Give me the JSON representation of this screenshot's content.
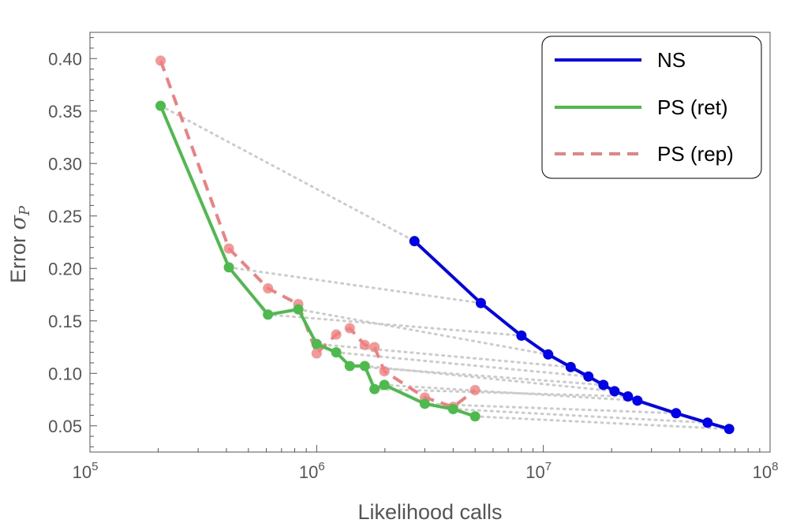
{
  "chart_data": {
    "type": "line",
    "title": "",
    "xlabel": "Likelihood calls",
    "ylabel": "Error σP",
    "ylabel_main": "Error",
    "ylabel_symbol": "σ",
    "ylabel_subscript": "P",
    "xscale": "log",
    "xlim": [
      100000,
      100000000
    ],
    "ylim": [
      0.025,
      0.425
    ],
    "x_ticks": [
      {
        "value": 100000,
        "base": "10",
        "exp": "5"
      },
      {
        "value": 1000000,
        "base": "10",
        "exp": "6"
      },
      {
        "value": 10000000,
        "base": "10",
        "exp": "7"
      },
      {
        "value": 100000000,
        "base": "10",
        "exp": "8"
      }
    ],
    "y_ticks": [
      {
        "value": 0.05,
        "label": "0.05"
      },
      {
        "value": 0.1,
        "label": "0.10"
      },
      {
        "value": 0.15,
        "label": "0.15"
      },
      {
        "value": 0.2,
        "label": "0.20"
      },
      {
        "value": 0.25,
        "label": "0.25"
      },
      {
        "value": 0.3,
        "label": "0.30"
      },
      {
        "value": 0.35,
        "label": "0.35"
      },
      {
        "value": 0.4,
        "label": "0.40"
      }
    ],
    "grid": false,
    "legend_position": "top-right",
    "series": [
      {
        "name": "NS",
        "color": "#0000ee",
        "style": "solid",
        "x": [
          2700000,
          5300000,
          8000000,
          10500000,
          13200000,
          15800000,
          18400000,
          20600000,
          23600000,
          26000000,
          38500000,
          53000000,
          66000000
        ],
        "y": [
          0.226,
          0.167,
          0.136,
          0.118,
          0.106,
          0.097,
          0.089,
          0.083,
          0.078,
          0.074,
          0.062,
          0.053,
          0.047
        ]
      },
      {
        "name": "PS (ret)",
        "color": "#4cbb4c",
        "style": "solid",
        "x": [
          205000,
          410000,
          610000,
          830000,
          1000000,
          1220000,
          1400000,
          1630000,
          1800000,
          1990000,
          3000000,
          4000000,
          5000000
        ],
        "y": [
          0.355,
          0.201,
          0.156,
          0.161,
          0.128,
          0.12,
          0.107,
          0.107,
          0.085,
          0.089,
          0.071,
          0.066,
          0.059
        ]
      },
      {
        "name": "PS (rep)",
        "color": "#f08080",
        "style": "dashed",
        "x": [
          205000,
          410000,
          610000,
          830000,
          1000000,
          1220000,
          1400000,
          1630000,
          1800000,
          1990000,
          3000000,
          4000000,
          5000000
        ],
        "y": [
          0.398,
          0.219,
          0.181,
          0.166,
          0.119,
          0.137,
          0.143,
          0.127,
          0.125,
          0.102,
          0.077,
          0.068,
          0.084
        ]
      }
    ],
    "connectors": {
      "color": "#cccccc",
      "style": "dotted",
      "description_pairs": [
        {
          "from_series": "PS (ret)",
          "to_series": "NS"
        }
      ]
    }
  }
}
